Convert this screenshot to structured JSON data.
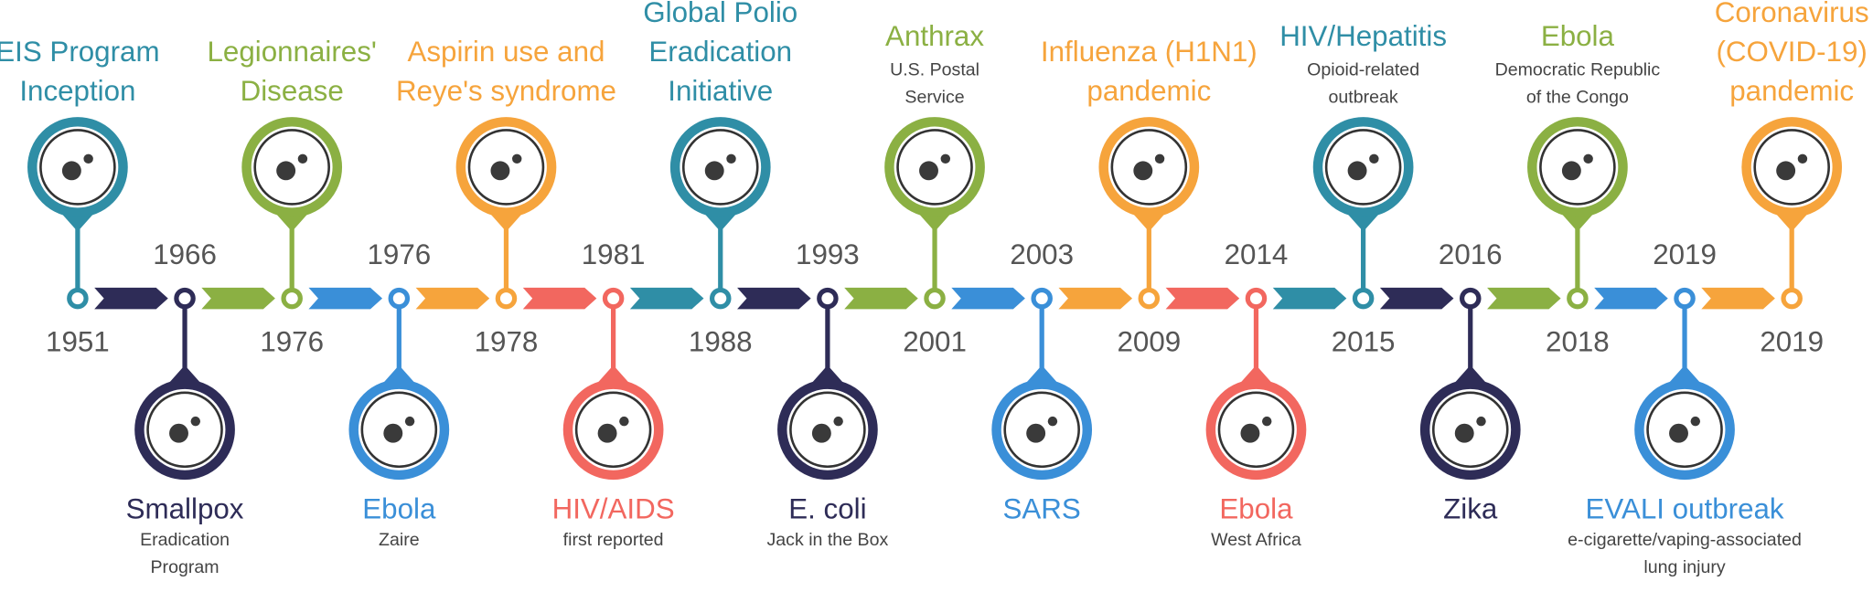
{
  "events": [
    {
      "year": "1951",
      "title": [
        "EIS Program",
        "Inception"
      ],
      "subtitle": [],
      "side": "top",
      "color": "#2f8ea6"
    },
    {
      "year": "1966",
      "title": [
        "Smallpox"
      ],
      "subtitle": [
        "Eradication",
        "Program"
      ],
      "side": "bottom",
      "color": "#2e2c57"
    },
    {
      "year": "1976",
      "title": [
        "Legionnaires'",
        "Disease"
      ],
      "subtitle": [],
      "side": "top",
      "color": "#8bb043"
    },
    {
      "year": "1976",
      "title": [
        "Ebola"
      ],
      "subtitle": [
        "Zaire"
      ],
      "side": "bottom",
      "color": "#3a8fd8"
    },
    {
      "year": "1978",
      "title": [
        "Aspirin use and",
        "Reye's syndrome"
      ],
      "subtitle": [],
      "side": "top",
      "color": "#f6a43c"
    },
    {
      "year": "1981",
      "title": [
        "HIV/AIDS"
      ],
      "subtitle": [
        "first reported"
      ],
      "side": "bottom",
      "color": "#f2675f"
    },
    {
      "year": "1988",
      "title": [
        "Global Polio",
        "Eradication",
        "Initiative"
      ],
      "subtitle": [],
      "side": "top",
      "color": "#2f8ea6"
    },
    {
      "year": "1993",
      "title": [
        "E. coli"
      ],
      "subtitle": [
        "Jack in the Box"
      ],
      "side": "bottom",
      "color": "#2e2c57"
    },
    {
      "year": "2001",
      "title": [
        "Anthrax"
      ],
      "subtitle": [
        "U.S. Postal",
        "Service"
      ],
      "side": "top",
      "color": "#8bb043"
    },
    {
      "year": "2003",
      "title": [
        "SARS"
      ],
      "subtitle": [],
      "side": "bottom",
      "color": "#3a8fd8"
    },
    {
      "year": "2009",
      "title": [
        "Influenza (H1N1)",
        "pandemic"
      ],
      "subtitle": [],
      "side": "top",
      "color": "#f6a43c"
    },
    {
      "year": "2014",
      "title": [
        "Ebola"
      ],
      "subtitle": [
        "West Africa"
      ],
      "side": "bottom",
      "color": "#f2675f"
    },
    {
      "year": "2015",
      "title": [
        "HIV/Hepatitis"
      ],
      "subtitle": [
        "Opioid-related",
        "outbreak"
      ],
      "side": "top",
      "color": "#2f8ea6"
    },
    {
      "year": "2016",
      "title": [
        "Zika"
      ],
      "subtitle": [],
      "side": "bottom",
      "color": "#2e2c57"
    },
    {
      "year": "2018",
      "title": [
        "Ebola"
      ],
      "subtitle": [
        "Democratic  Republic",
        "of the Congo"
      ],
      "side": "top",
      "color": "#8bb043"
    },
    {
      "year": "2019",
      "title": [
        "EVALI outbreak"
      ],
      "subtitle": [
        "e-cigarette/vaping-associated",
        "lung injury"
      ],
      "side": "bottom",
      "color": "#3a8fd8"
    },
    {
      "year": "2019",
      "title": [
        "Coronavirus",
        "(COVID-19)",
        "pandemic"
      ],
      "subtitle": [],
      "side": "top",
      "color": "#f6a43c"
    }
  ]
}
